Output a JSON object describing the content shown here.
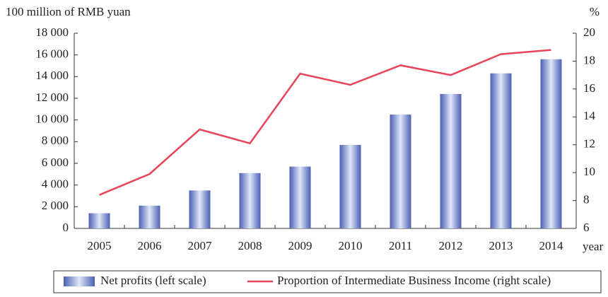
{
  "chart_data": {
    "type": "bar",
    "y_label": "100 million of RMB yuan",
    "y2_label": "%",
    "x_label": "year",
    "categories": [
      "2005",
      "2006",
      "2007",
      "2008",
      "2009",
      "2010",
      "2011",
      "2012",
      "2013",
      "2014"
    ],
    "series": [
      {
        "name": "Net profits (left scale)",
        "type": "bar",
        "color": "#4a5fb3",
        "values": [
          1400,
          2100,
          3500,
          5100,
          5700,
          7700,
          10500,
          12400,
          14300,
          15600
        ]
      },
      {
        "name": "Proportion of Intermediate Business Income (right scale)",
        "type": "line",
        "axis": "y2",
        "color": "#e8445a",
        "values": [
          8.4,
          9.9,
          13.1,
          12.1,
          17.1,
          16.3,
          17.7,
          17.0,
          18.5,
          18.8
        ]
      }
    ],
    "ylim": [
      0,
      18000
    ],
    "yticks": [
      0,
      {
        "value": 2000,
        "label": "2 000"
      },
      {
        "value": 4000,
        "label": "4 000"
      },
      {
        "value": 6000,
        "label": "6 000"
      },
      {
        "value": 8000,
        "label": "8 000"
      },
      {
        "value": 10000,
        "label": "10 000"
      },
      {
        "value": 12000,
        "label": "12 000"
      },
      {
        "value": 14000,
        "label": "14 000"
      },
      {
        "value": 16000,
        "label": "16 000"
      },
      {
        "value": 18000,
        "label": "18 000"
      }
    ],
    "y2lim": [
      6,
      20
    ],
    "y2ticks": [
      6,
      8,
      10,
      12,
      14,
      16,
      18,
      20
    ],
    "legend": "bottom"
  }
}
